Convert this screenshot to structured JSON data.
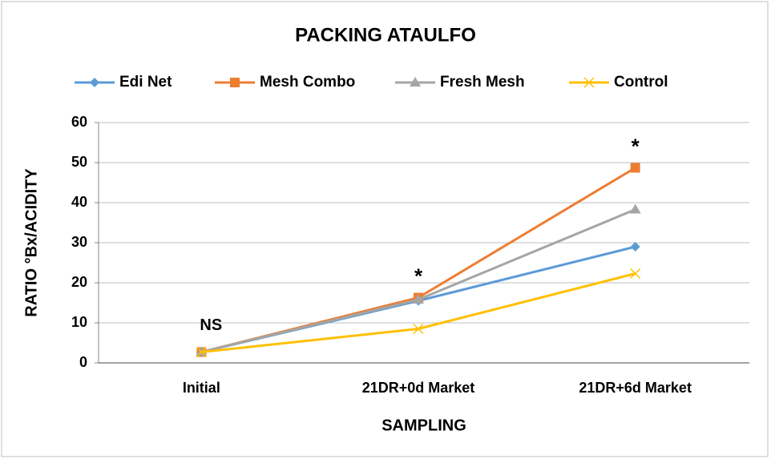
{
  "chart_data": {
    "type": "line",
    "title": "PACKING ATAULFO",
    "x_label": "SAMPLING",
    "y_label": "RATIO °Bx/ACIDITY",
    "categories": [
      "Initial",
      "21DR+0d Market",
      "21DR+6d Market"
    ],
    "series": [
      {
        "name": "Edi Net",
        "color": "#5b9bd5",
        "marker": "diamond",
        "values": [
          2.7,
          15.5,
          29
        ]
      },
      {
        "name": "Mesh Combo",
        "color": "#ed7d31",
        "marker": "square",
        "values": [
          2.7,
          16.3,
          48.7
        ]
      },
      {
        "name": "Fresh Mesh",
        "color": "#a5a5a5",
        "marker": "triangle",
        "values": [
          2.7,
          15.8,
          38.3
        ]
      },
      {
        "name": "Control",
        "color": "#ffc000",
        "marker": "x",
        "values": [
          2.7,
          8.5,
          22.3
        ]
      }
    ],
    "annotations": [
      "NS",
      "*",
      "*"
    ],
    "ylim": [
      0,
      60
    ],
    "yticks": [
      0,
      10,
      20,
      30,
      40,
      50,
      60
    ],
    "grid": true,
    "legend": "top"
  }
}
